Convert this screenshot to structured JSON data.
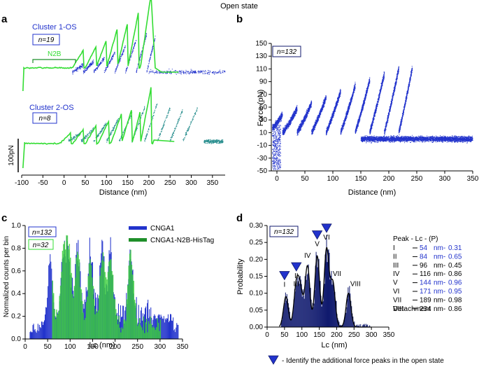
{
  "figure_title": "Open state",
  "colors": {
    "blue": "#2233cc",
    "green": "#33dd33",
    "teal": "#2a8f8f",
    "navy": "#101a6e",
    "dark_green": "#1f8f2a"
  },
  "panel_a": {
    "label": "a",
    "cluster1": "Cluster 1-OS",
    "n1": "n=19",
    "n2b": "N2B",
    "cluster2": "Cluster 2-OS",
    "n2": "n=8",
    "scale_bar": "100pN",
    "xlabel": "Distance (nm)",
    "xticks": [
      "-100",
      "-50",
      "0",
      "50",
      "100",
      "150",
      "200",
      "250",
      "300",
      "350"
    ]
  },
  "panel_b": {
    "label": "b",
    "n": "n=132",
    "chart_data": {
      "type": "scatter",
      "title": "",
      "xlabel": "Distance (nm)",
      "ylabel": "Force (pN)",
      "xlim": [
        -10,
        350
      ],
      "ylim": [
        -50,
        150
      ],
      "xticks": [
        "0",
        "50",
        "100",
        "150",
        "200",
        "250",
        "300",
        "350"
      ],
      "yticks": [
        "-50",
        "-30",
        "-10",
        "10",
        "30",
        "50",
        "70",
        "90",
        "110",
        "130",
        "150"
      ]
    }
  },
  "panel_c": {
    "label": "c",
    "n_blue": "n=132",
    "n_green": "n=32",
    "legend": [
      "CNGA1",
      "CNGA1-N2B-HisTag"
    ],
    "chart_data": {
      "type": "bar",
      "xlabel": "Lc (nm)",
      "ylabel": "Normalized counts per bin",
      "xlim": [
        0,
        350
      ],
      "ylim": [
        0,
        1.0
      ],
      "xticks": [
        "0",
        "50",
        "100",
        "150",
        "200",
        "250",
        "300",
        "350"
      ],
      "yticks": [
        "0.0",
        "0.2",
        "0.4",
        "0.6",
        "0.8",
        "1.0"
      ]
    }
  },
  "panel_d": {
    "label": "d",
    "n": "n=132",
    "chart_data": {
      "type": "bar",
      "xlabel": "Lc (nm)",
      "ylabel": "Probability",
      "xlim": [
        0,
        350
      ],
      "ylim": [
        0,
        0.3
      ],
      "xticks": [
        "0",
        "50",
        "100",
        "150",
        "200",
        "250",
        "300",
        "350"
      ],
      "yticks": [
        "0.00",
        "0.05",
        "0.10",
        "0.15",
        "0.20",
        "0.25",
        "0.30"
      ],
      "peaks": [
        {
          "roman": "I",
          "lc": 54,
          "p": 0.31,
          "marked": true
        },
        {
          "roman": "II",
          "lc": 84,
          "p": 0.65,
          "marked": true
        },
        {
          "roman": "III",
          "lc": 96,
          "p": 0.45,
          "marked": false
        },
        {
          "roman": "IV",
          "lc": 116,
          "p": 0.86,
          "marked": false
        },
        {
          "roman": "V",
          "lc": 144,
          "p": 0.96,
          "marked": true
        },
        {
          "roman": "VI",
          "lc": 171,
          "p": 0.95,
          "marked": true
        },
        {
          "roman": "VII",
          "lc": 189,
          "p": 0.98,
          "marked": false
        },
        {
          "roman": "VIII",
          "lc": 234,
          "p": 0.86,
          "marked": false
        }
      ]
    },
    "table_header": "Peak - Lc - (P)",
    "rows": [
      {
        "peak": "I",
        "lc": "54",
        "p": "0.31"
      },
      {
        "peak": "II",
        "lc": "84",
        "p": "0.65"
      },
      {
        "peak": "III",
        "lc": "96",
        "p": "0.45"
      },
      {
        "peak": "IV",
        "lc": "116",
        "p": "0.86"
      },
      {
        "peak": "V",
        "lc": "144",
        "p": "0.96"
      },
      {
        "peak": "VI",
        "lc": "171",
        "p": "0.95"
      },
      {
        "peak": "VII",
        "lc": "189",
        "p": "0.98"
      },
      {
        "peak": "VIII-",
        "lc": "234",
        "p": "0.86"
      }
    ],
    "unit": "nm-",
    "detachment": "Detachment"
  },
  "footnote": "- Identify the additional force peaks in the open state"
}
